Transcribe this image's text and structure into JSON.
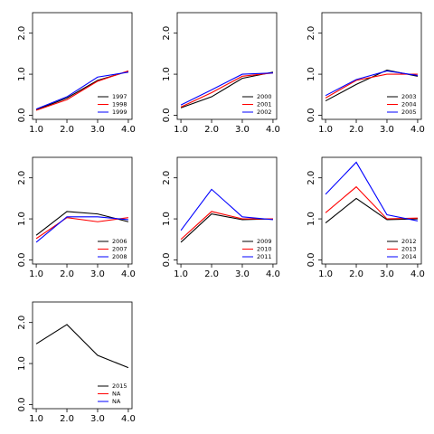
{
  "chart_data": [
    {
      "type": "line",
      "xlim": [
        0.88,
        4.12
      ],
      "ylim": [
        -0.1,
        2.5
      ],
      "xticks": [
        {
          "value": 1,
          "label": "1.0"
        },
        {
          "value": 2,
          "label": "2.0"
        },
        {
          "value": 3,
          "label": "3.0"
        },
        {
          "value": 4,
          "label": "4.0"
        }
      ],
      "yticks": [
        {
          "value": 0,
          "label": "0.0"
        },
        {
          "value": 1,
          "label": "1.0"
        },
        {
          "value": 2,
          "label": "2.0"
        }
      ],
      "x": [
        1,
        2,
        3,
        4
      ],
      "legend": "bottom-right",
      "series": [
        {
          "name": "1997",
          "color": "#000000",
          "values": [
            0.13,
            0.42,
            0.85,
            1.07
          ]
        },
        {
          "name": "1998",
          "color": "#ff0000",
          "values": [
            0.12,
            0.38,
            0.83,
            1.08
          ]
        },
        {
          "name": "1999",
          "color": "#0000ff",
          "values": [
            0.15,
            0.45,
            0.93,
            1.05
          ]
        }
      ]
    },
    {
      "type": "line",
      "xlim": [
        0.88,
        4.12
      ],
      "ylim": [
        -0.1,
        2.5
      ],
      "xticks": [
        {
          "value": 1,
          "label": "1.0"
        },
        {
          "value": 2,
          "label": "2.0"
        },
        {
          "value": 3,
          "label": "3.0"
        },
        {
          "value": 4,
          "label": "4.0"
        }
      ],
      "yticks": [
        {
          "value": 0,
          "label": "0.0"
        },
        {
          "value": 1,
          "label": "1.0"
        },
        {
          "value": 2,
          "label": "2.0"
        }
      ],
      "x": [
        1,
        2,
        3,
        4
      ],
      "legend": "bottom-right",
      "series": [
        {
          "name": "2000",
          "color": "#000000",
          "values": [
            0.18,
            0.45,
            0.9,
            1.05
          ]
        },
        {
          "name": "2001",
          "color": "#ff0000",
          "values": [
            0.2,
            0.55,
            0.95,
            1.03
          ]
        },
        {
          "name": "2002",
          "color": "#0000ff",
          "values": [
            0.25,
            0.62,
            1.0,
            1.03
          ]
        }
      ]
    },
    {
      "type": "line",
      "xlim": [
        0.88,
        4.12
      ],
      "ylim": [
        -0.1,
        2.5
      ],
      "xticks": [
        {
          "value": 1,
          "label": "1.0"
        },
        {
          "value": 2,
          "label": "2.0"
        },
        {
          "value": 3,
          "label": "3.0"
        },
        {
          "value": 4,
          "label": "4.0"
        }
      ],
      "yticks": [
        {
          "value": 0,
          "label": "0.0"
        },
        {
          "value": 1,
          "label": "1.0"
        },
        {
          "value": 2,
          "label": "2.0"
        }
      ],
      "x": [
        1,
        2,
        3,
        4
      ],
      "legend": "bottom-right",
      "series": [
        {
          "name": "2003",
          "color": "#000000",
          "values": [
            0.35,
            0.75,
            1.1,
            0.95
          ]
        },
        {
          "name": "2004",
          "color": "#ff0000",
          "values": [
            0.42,
            0.85,
            1.0,
            1.0
          ]
        },
        {
          "name": "2005",
          "color": "#0000ff",
          "values": [
            0.48,
            0.87,
            1.08,
            0.97
          ]
        }
      ]
    },
    {
      "type": "line",
      "xlim": [
        0.88,
        4.12
      ],
      "ylim": [
        -0.1,
        2.5
      ],
      "xticks": [
        {
          "value": 1,
          "label": "1.0"
        },
        {
          "value": 2,
          "label": "2.0"
        },
        {
          "value": 3,
          "label": "3.0"
        },
        {
          "value": 4,
          "label": "4.0"
        }
      ],
      "yticks": [
        {
          "value": 0,
          "label": "0.0"
        },
        {
          "value": 1,
          "label": "1.0"
        },
        {
          "value": 2,
          "label": "2.0"
        }
      ],
      "x": [
        1,
        2,
        3,
        4
      ],
      "legend": "bottom-right",
      "series": [
        {
          "name": "2006",
          "color": "#000000",
          "values": [
            0.6,
            1.18,
            1.12,
            0.93
          ]
        },
        {
          "name": "2007",
          "color": "#ff0000",
          "values": [
            0.52,
            1.03,
            0.93,
            1.03
          ]
        },
        {
          "name": "2008",
          "color": "#0000ff",
          "values": [
            0.43,
            1.05,
            1.05,
            0.98
          ]
        }
      ]
    },
    {
      "type": "line",
      "xlim": [
        0.88,
        4.12
      ],
      "ylim": [
        -0.1,
        2.5
      ],
      "xticks": [
        {
          "value": 1,
          "label": "1.0"
        },
        {
          "value": 2,
          "label": "2.0"
        },
        {
          "value": 3,
          "label": "3.0"
        },
        {
          "value": 4,
          "label": "4.0"
        }
      ],
      "yticks": [
        {
          "value": 0,
          "label": "0.0"
        },
        {
          "value": 1,
          "label": "1.0"
        },
        {
          "value": 2,
          "label": "2.0"
        }
      ],
      "x": [
        1,
        2,
        3,
        4
      ],
      "legend": "bottom-right",
      "series": [
        {
          "name": "2009",
          "color": "#000000",
          "values": [
            0.43,
            1.12,
            0.98,
            1.0
          ]
        },
        {
          "name": "2010",
          "color": "#ff0000",
          "values": [
            0.5,
            1.18,
            1.0,
            1.0
          ]
        },
        {
          "name": "2011",
          "color": "#0000ff",
          "values": [
            0.72,
            1.72,
            1.05,
            0.98
          ]
        }
      ]
    },
    {
      "type": "line",
      "xlim": [
        0.88,
        4.12
      ],
      "ylim": [
        -0.1,
        2.5
      ],
      "xticks": [
        {
          "value": 1,
          "label": "1.0"
        },
        {
          "value": 2,
          "label": "2.0"
        },
        {
          "value": 3,
          "label": "3.0"
        },
        {
          "value": 4,
          "label": "4.0"
        }
      ],
      "yticks": [
        {
          "value": 0,
          "label": "0.0"
        },
        {
          "value": 1,
          "label": "1.0"
        },
        {
          "value": 2,
          "label": "2.0"
        }
      ],
      "x": [
        1,
        2,
        3,
        4
      ],
      "legend": "bottom-right",
      "series": [
        {
          "name": "2012",
          "color": "#000000",
          "values": [
            0.9,
            1.5,
            0.98,
            1.0
          ]
        },
        {
          "name": "2013",
          "color": "#ff0000",
          "values": [
            1.15,
            1.78,
            1.0,
            1.02
          ]
        },
        {
          "name": "2014",
          "color": "#0000ff",
          "values": [
            1.6,
            2.38,
            1.1,
            0.95
          ]
        }
      ]
    },
    {
      "type": "line",
      "xlim": [
        0.88,
        4.12
      ],
      "ylim": [
        -0.1,
        2.5
      ],
      "xticks": [
        {
          "value": 1,
          "label": "1.0"
        },
        {
          "value": 2,
          "label": "2.0"
        },
        {
          "value": 3,
          "label": "3.0"
        },
        {
          "value": 4,
          "label": "4.0"
        }
      ],
      "yticks": [
        {
          "value": 0,
          "label": "0.0"
        },
        {
          "value": 1,
          "label": "1.0"
        },
        {
          "value": 2,
          "label": "2.0"
        }
      ],
      "x": [
        1,
        2,
        3,
        4
      ],
      "legend": "bottom-right",
      "series": [
        {
          "name": "2015",
          "color": "#000000",
          "values": [
            1.48,
            1.95,
            1.2,
            0.9
          ]
        },
        {
          "name": "NA",
          "color": "#ff0000",
          "values": [
            null,
            null,
            null,
            null
          ]
        },
        {
          "name": "NA",
          "color": "#0000ff",
          "values": [
            null,
            null,
            null,
            null
          ]
        }
      ]
    }
  ]
}
